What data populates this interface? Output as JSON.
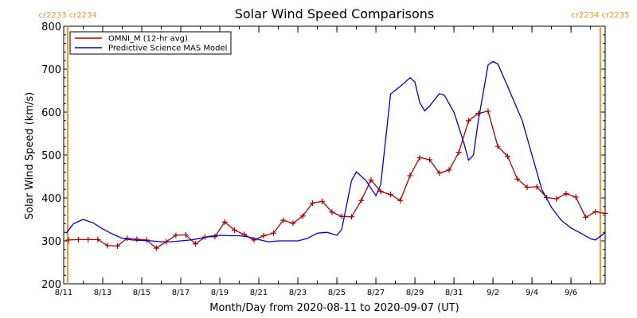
{
  "chart_data": {
    "type": "line",
    "title": "Solar Wind Speed Comparisons",
    "xlabel": "Month/Day from 2020-08-11 to 2020-09-07 (UT)",
    "ylabel": "Solar Wind Speed (km/s)",
    "ylim": [
      200,
      800
    ],
    "yticks": [
      200,
      300,
      400,
      500,
      600,
      700,
      800
    ],
    "xlim": [
      "2020-08-11",
      "2020-09-07"
    ],
    "xticks": [
      {
        "date": "2020-08-11",
        "label": "8/11"
      },
      {
        "date": "2020-08-13",
        "label": "8/13"
      },
      {
        "date": "2020-08-15",
        "label": "8/15"
      },
      {
        "date": "2020-08-17",
        "label": "8/17"
      },
      {
        "date": "2020-08-19",
        "label": "8/19"
      },
      {
        "date": "2020-08-21",
        "label": "8/21"
      },
      {
        "date": "2020-08-23",
        "label": "8/23"
      },
      {
        "date": "2020-08-25",
        "label": "8/25"
      },
      {
        "date": "2020-08-27",
        "label": "8/27"
      },
      {
        "date": "2020-08-29",
        "label": "8/29"
      },
      {
        "date": "2020-08-31",
        "label": "8/31"
      },
      {
        "date": "2020-09-02",
        "label": "9/2"
      },
      {
        "date": "2020-09-04",
        "label": "9/4"
      },
      {
        "date": "2020-09-06",
        "label": "9/6"
      }
    ],
    "carrington_markers": [
      {
        "date": "2020-08-11 05:00",
        "left_label": "cr2233",
        "right_label": "cr2234",
        "color": "#e8952a"
      },
      {
        "date": "2020-09-07 12:00",
        "left_label": "cr2234",
        "right_label": "cr2235",
        "color": "#e8952a"
      }
    ],
    "legend": {
      "position": "top-left"
    },
    "series": [
      {
        "name": "OMNI_M (12-hr avg)",
        "color": "#aa0000",
        "markers": "plus",
        "points": [
          [
            "2020-08-11 06:00",
            302
          ],
          [
            "2020-08-11 18:00",
            303
          ],
          [
            "2020-08-12 06:00",
            303
          ],
          [
            "2020-08-12 18:00",
            303
          ],
          [
            "2020-08-13 06:00",
            289
          ],
          [
            "2020-08-13 18:00",
            288
          ],
          [
            "2020-08-14 06:00",
            306
          ],
          [
            "2020-08-14 18:00",
            304
          ],
          [
            "2020-08-15 06:00",
            302
          ],
          [
            "2020-08-15 18:00",
            283
          ],
          [
            "2020-08-16 06:00",
            298
          ],
          [
            "2020-08-16 18:00",
            313
          ],
          [
            "2020-08-17 06:00",
            314
          ],
          [
            "2020-08-17 18:00",
            293
          ],
          [
            "2020-08-18 06:00",
            309
          ],
          [
            "2020-08-18 18:00",
            310
          ],
          [
            "2020-08-19 06:00",
            344
          ],
          [
            "2020-08-19 18:00",
            325
          ],
          [
            "2020-08-20 06:00",
            315
          ],
          [
            "2020-08-20 18:00",
            302
          ],
          [
            "2020-08-21 06:00",
            312
          ],
          [
            "2020-08-21 18:00",
            318
          ],
          [
            "2020-08-22 06:00",
            348
          ],
          [
            "2020-08-22 18:00",
            341
          ],
          [
            "2020-08-23 06:00",
            358
          ],
          [
            "2020-08-23 18:00",
            388
          ],
          [
            "2020-08-24 06:00",
            392
          ],
          [
            "2020-08-24 18:00",
            367
          ],
          [
            "2020-08-25 06:00",
            357
          ],
          [
            "2020-08-25 18:00",
            356
          ],
          [
            "2020-08-26 06:00",
            394
          ],
          [
            "2020-08-26 18:00",
            442
          ],
          [
            "2020-08-27 06:00",
            415
          ],
          [
            "2020-08-27 18:00",
            408
          ],
          [
            "2020-08-28 06:00",
            394
          ],
          [
            "2020-08-28 18:00",
            452
          ],
          [
            "2020-08-29 06:00",
            494
          ],
          [
            "2020-08-29 18:00",
            489
          ],
          [
            "2020-08-30 06:00",
            458
          ],
          [
            "2020-08-30 18:00",
            465
          ],
          [
            "2020-08-31 06:00",
            506
          ],
          [
            "2020-08-31 18:00",
            580
          ],
          [
            "2020-09-01 06:00",
            597
          ],
          [
            "2020-09-01 18:00",
            602
          ],
          [
            "2020-09-02 06:00",
            520
          ],
          [
            "2020-09-02 18:00",
            497
          ],
          [
            "2020-09-03 06:00",
            444
          ],
          [
            "2020-09-03 18:00",
            425
          ],
          [
            "2020-09-04 06:00",
            426
          ],
          [
            "2020-09-04 18:00",
            401
          ],
          [
            "2020-09-05 06:00",
            398
          ],
          [
            "2020-09-05 18:00",
            410
          ],
          [
            "2020-09-06 06:00",
            402
          ],
          [
            "2020-09-06 18:00",
            355
          ],
          [
            "2020-09-07 06:00",
            368
          ],
          [
            "2020-09-07 18:00",
            364
          ]
        ]
      },
      {
        "name": "Predictive Science MAS Model",
        "color": "#0000cc",
        "markers": "none",
        "points": [
          [
            "2020-08-11 03:00",
            318
          ],
          [
            "2020-08-11 12:00",
            340
          ],
          [
            "2020-08-12 00:00",
            350
          ],
          [
            "2020-08-12 12:00",
            342
          ],
          [
            "2020-08-13 00:00",
            328
          ],
          [
            "2020-08-13 12:00",
            316
          ],
          [
            "2020-08-14 00:00",
            306
          ],
          [
            "2020-08-14 12:00",
            302
          ],
          [
            "2020-08-15 00:00",
            301
          ],
          [
            "2020-08-15 12:00",
            300
          ],
          [
            "2020-08-16 00:00",
            298
          ],
          [
            "2020-08-16 12:00",
            298
          ],
          [
            "2020-08-17 00:00",
            300
          ],
          [
            "2020-08-17 12:00",
            302
          ],
          [
            "2020-08-18 00:00",
            306
          ],
          [
            "2020-08-18 12:00",
            311
          ],
          [
            "2020-08-19 00:00",
            313
          ],
          [
            "2020-08-19 12:00",
            312
          ],
          [
            "2020-08-20 00:00",
            312
          ],
          [
            "2020-08-20 12:00",
            309
          ],
          [
            "2020-08-21 00:00",
            303
          ],
          [
            "2020-08-21 12:00",
            298
          ],
          [
            "2020-08-22 00:00",
            300
          ],
          [
            "2020-08-22 12:00",
            300
          ],
          [
            "2020-08-23 00:00",
            300
          ],
          [
            "2020-08-23 12:00",
            306
          ],
          [
            "2020-08-24 00:00",
            318
          ],
          [
            "2020-08-24 12:00",
            320
          ],
          [
            "2020-08-25 00:00",
            313
          ],
          [
            "2020-08-25 06:00",
            327
          ],
          [
            "2020-08-25 18:00",
            440
          ],
          [
            "2020-08-26 00:00",
            461
          ],
          [
            "2020-08-26 12:00",
            440
          ],
          [
            "2020-08-27 00:00",
            405
          ],
          [
            "2020-08-27 06:00",
            432
          ],
          [
            "2020-08-27 18:00",
            642
          ],
          [
            "2020-08-28 06:00",
            660
          ],
          [
            "2020-08-28 18:00",
            680
          ],
          [
            "2020-08-29 00:00",
            670
          ],
          [
            "2020-08-29 06:00",
            622
          ],
          [
            "2020-08-29 12:00",
            603
          ],
          [
            "2020-08-29 18:00",
            614
          ],
          [
            "2020-08-30 06:00",
            643
          ],
          [
            "2020-08-30 12:00",
            640
          ],
          [
            "2020-08-31 00:00",
            600
          ],
          [
            "2020-08-31 12:00",
            530
          ],
          [
            "2020-08-31 18:00",
            488
          ],
          [
            "2020-09-01 00:00",
            500
          ],
          [
            "2020-09-01 06:00",
            580
          ],
          [
            "2020-09-01 18:00",
            710
          ],
          [
            "2020-09-02 00:00",
            718
          ],
          [
            "2020-09-02 06:00",
            712
          ],
          [
            "2020-09-02 18:00",
            660
          ],
          [
            "2020-09-03 12:00",
            580
          ],
          [
            "2020-09-04 00:00",
            500
          ],
          [
            "2020-09-04 12:00",
            420
          ],
          [
            "2020-09-05 00:00",
            378
          ],
          [
            "2020-09-05 12:00",
            348
          ],
          [
            "2020-09-06 00:00",
            330
          ],
          [
            "2020-09-06 12:00",
            318
          ],
          [
            "2020-09-07 00:00",
            305
          ],
          [
            "2020-09-07 06:00",
            302
          ],
          [
            "2020-09-07 18:00",
            319
          ]
        ]
      }
    ]
  }
}
